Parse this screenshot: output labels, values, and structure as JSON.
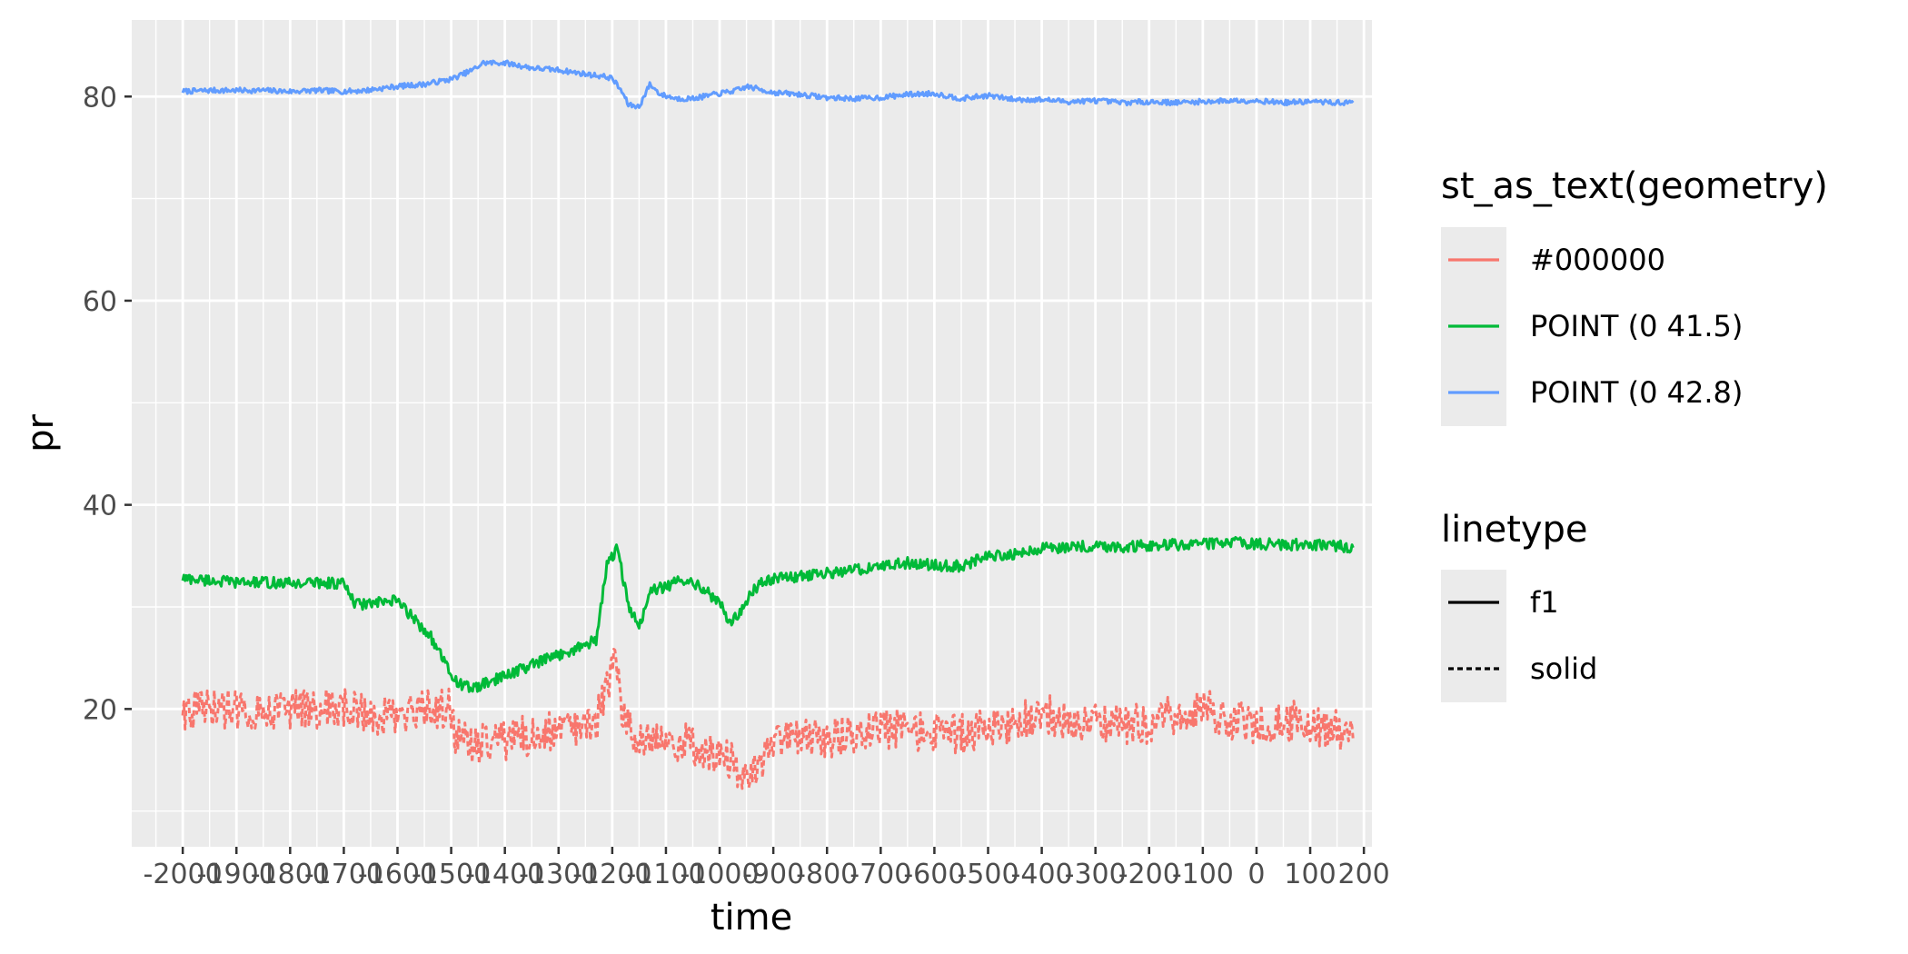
{
  "chart_data": {
    "type": "line",
    "xlabel": "time",
    "ylabel": "pr",
    "ylim": [
      6.5,
      87.5
    ],
    "y_ticks": [
      20,
      40,
      60,
      80
    ],
    "x_ticks": [
      -2000,
      -1900,
      -1800,
      -1700,
      -1600,
      -1500,
      -1400,
      -1300,
      -1200,
      -1100,
      -1000,
      -900,
      -800,
      -700,
      -600,
      -500,
      -400,
      -300,
      -200,
      -100,
      0,
      100,
      200
    ],
    "x_tick_labels": [
      "-2000",
      "-1900",
      "-1800",
      "-1700",
      "-1600",
      "-1500",
      "-1400",
      "-1300",
      "-1200",
      "-1100",
      "-1000",
      "-900",
      "-800",
      "-700",
      "-600",
      "-500",
      "-400",
      "-300",
      "-200",
      "-100",
      "0",
      "100",
      "200"
    ],
    "xlim": [
      -2095,
      215
    ],
    "grid": true,
    "legend_position": "right",
    "legends": [
      {
        "title": "st_as_text(geometry)",
        "key_type": "colour",
        "entries": [
          {
            "label": "#000000",
            "color": "#F8766D"
          },
          {
            "label": "POINT (0 41.5)",
            "color": "#00BA38"
          },
          {
            "label": "POINT (0 42.8)",
            "color": "#619CFF"
          }
        ]
      },
      {
        "title": "linetype",
        "key_type": "linetype",
        "entries": [
          {
            "label": "f1",
            "dash": "solid"
          },
          {
            "label": "solid",
            "dash": "dashed"
          }
        ]
      }
    ],
    "series": [
      {
        "color": "#619CFF",
        "linetype": "solid",
        "noise": 0.25,
        "x": [
          -2000,
          -1950,
          -1900,
          -1850,
          -1800,
          -1750,
          -1700,
          -1660,
          -1600,
          -1550,
          -1500,
          -1460,
          -1440,
          -1400,
          -1350,
          -1300,
          -1250,
          -1220,
          -1200,
          -1180,
          -1170,
          -1150,
          -1130,
          -1110,
          -1080,
          -1050,
          -1000,
          -960,
          -950,
          -900,
          -850,
          -800,
          -750,
          -700,
          -650,
          -600,
          -550,
          -500,
          -450,
          -400,
          -350,
          -300,
          -250,
          -200,
          -150,
          -100,
          -50,
          0,
          50,
          100,
          150,
          180
        ],
        "y": [
          80.5,
          80.6,
          80.6,
          80.6,
          80.5,
          80.6,
          80.5,
          80.6,
          81.0,
          81.2,
          81.7,
          82.6,
          83.3,
          83.3,
          82.8,
          82.6,
          82.2,
          82.0,
          81.8,
          80.3,
          79.2,
          79.0,
          81.2,
          80.2,
          79.8,
          79.8,
          80.3,
          80.7,
          81.0,
          80.4,
          80.2,
          79.9,
          79.8,
          79.9,
          80.2,
          80.3,
          79.8,
          80.1,
          79.7,
          79.7,
          79.5,
          79.6,
          79.4,
          79.5,
          79.4,
          79.5,
          79.6,
          79.6,
          79.4,
          79.5,
          79.4,
          79.4
        ]
      },
      {
        "color": "#00BA38",
        "linetype": "solid",
        "noise": 0.55,
        "x": [
          -2000,
          -1950,
          -1900,
          -1850,
          -1800,
          -1750,
          -1700,
          -1680,
          -1650,
          -1600,
          -1560,
          -1540,
          -1520,
          -1500,
          -1480,
          -1460,
          -1420,
          -1400,
          -1350,
          -1300,
          -1250,
          -1230,
          -1210,
          -1190,
          -1170,
          -1150,
          -1130,
          -1100,
          -1060,
          -1030,
          -1000,
          -980,
          -960,
          -940,
          -920,
          -900,
          -850,
          -800,
          -750,
          -700,
          -650,
          -600,
          -550,
          -500,
          -450,
          -400,
          -350,
          -300,
          -250,
          -200,
          -150,
          -100,
          -50,
          0,
          50,
          100,
          150,
          180
        ],
        "y": [
          32.8,
          32.6,
          32.4,
          32.4,
          32.3,
          32.4,
          32.3,
          30.3,
          30.3,
          30.6,
          28.3,
          27.3,
          25.3,
          23.3,
          22.3,
          22.0,
          22.8,
          23.3,
          24.3,
          25.3,
          26.3,
          26.8,
          34.0,
          35.8,
          30.0,
          28.0,
          31.5,
          32.0,
          32.8,
          31.8,
          30.3,
          28.5,
          29.5,
          31.5,
          32.5,
          32.8,
          33.0,
          33.3,
          33.6,
          34.0,
          34.3,
          34.1,
          34.0,
          35.0,
          35.2,
          35.7,
          35.9,
          36.0,
          35.9,
          36.0,
          36.1,
          36.2,
          36.3,
          36.2,
          36.1,
          36.1,
          36.0,
          35.8
        ]
      },
      {
        "color": "#F8766D",
        "linetype": "dashed",
        "noise": 2.0,
        "x": [
          -2000,
          -1950,
          -1900,
          -1850,
          -1800,
          -1750,
          -1700,
          -1650,
          -1600,
          -1550,
          -1500,
          -1490,
          -1450,
          -1400,
          -1350,
          -1300,
          -1250,
          -1230,
          -1210,
          -1195,
          -1180,
          -1160,
          -1130,
          -1100,
          -1050,
          -1000,
          -960,
          -950,
          -920,
          -900,
          -850,
          -800,
          -750,
          -700,
          -650,
          -600,
          -550,
          -500,
          -450,
          -400,
          -350,
          -300,
          -250,
          -200,
          -150,
          -100,
          -50,
          0,
          50,
          100,
          150,
          180
        ],
        "y": [
          20.0,
          20.0,
          20.0,
          20.0,
          20.0,
          20.0,
          20.0,
          19.6,
          19.0,
          19.8,
          20.0,
          17.0,
          16.5,
          17.0,
          17.5,
          18.0,
          18.2,
          18.5,
          22.5,
          24.5,
          19.0,
          17.5,
          17.5,
          17.0,
          16.5,
          15.5,
          14.0,
          12.5,
          14.5,
          16.5,
          17.0,
          17.0,
          17.5,
          18.0,
          18.0,
          17.5,
          17.5,
          18.0,
          18.5,
          19.5,
          19.0,
          18.5,
          18.5,
          18.5,
          19.5,
          20.0,
          19.0,
          18.5,
          19.0,
          18.5,
          18.0,
          17.0
        ]
      }
    ]
  }
}
